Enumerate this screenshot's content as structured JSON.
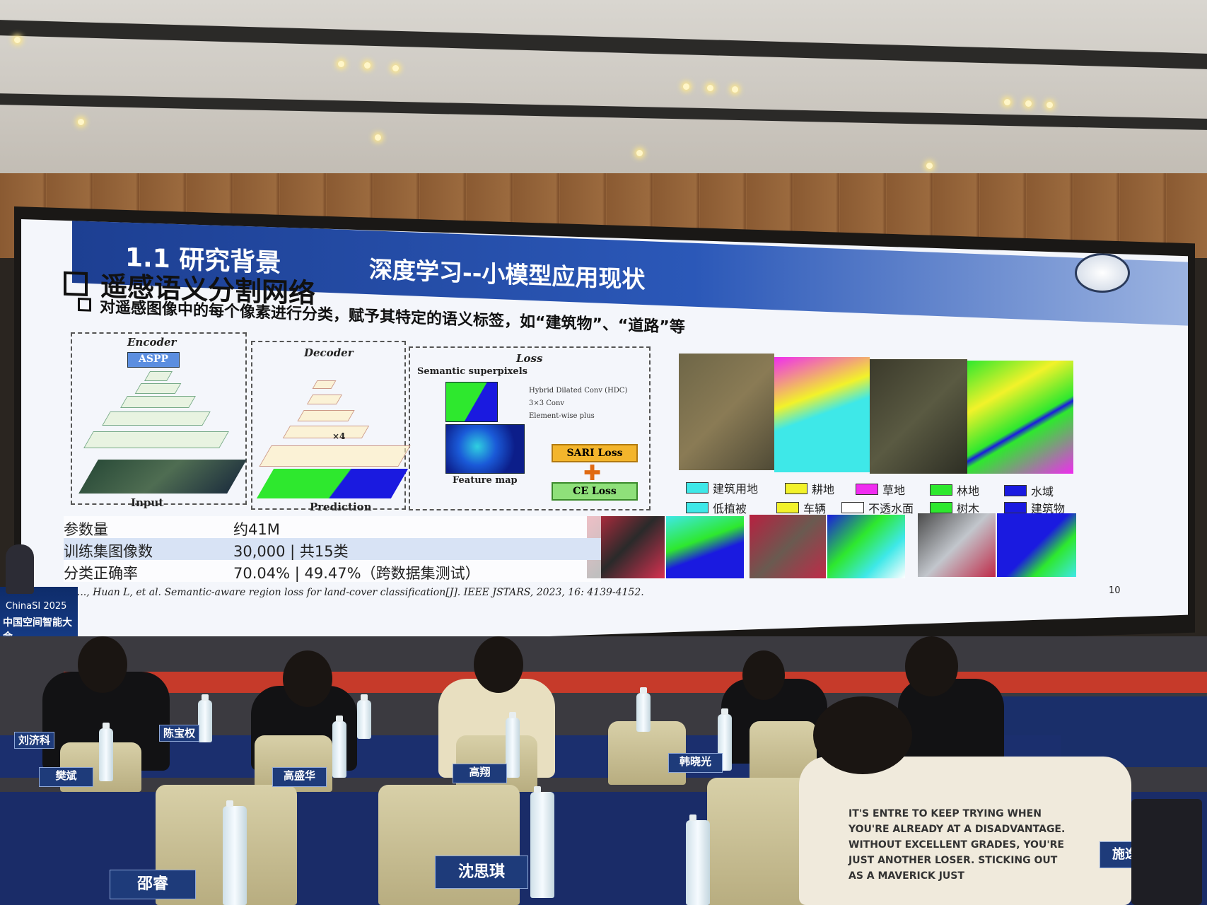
{
  "slide": {
    "title_section": "1.1 研究背景",
    "title_topic": "深度学习--小模型应用现状",
    "heading": "遥感语义分割网络",
    "subheading": "对遥感图像中的每个像素进行分类，赋予其特定的语义标签，如“建筑物”、“道路”等",
    "page_number": "10",
    "diagram": {
      "encoder_label": "Encoder",
      "decoder_label": "Decoder",
      "loss_label": "Loss",
      "aspp_label": "ASPP",
      "input_label": "Input",
      "prediction_label": "Prediction",
      "superpixels_label": "Semantic superpixels",
      "feature_map_label": "Feature map",
      "x4_label": "×4",
      "sari_loss_label": "SARI Loss",
      "ce_loss_label": "CE Loss",
      "legend_hdc": "Hybrid Dilated Conv (HDC)",
      "legend_conv": "3×3 Conv",
      "legend_plus": "Element-wise plus"
    },
    "legend_row1": [
      {
        "label": "建筑用地",
        "color": "#3ee8e8"
      },
      {
        "label": "耕地",
        "color": "#f2f22a"
      },
      {
        "label": "草地",
        "color": "#f02cf0"
      },
      {
        "label": "林地",
        "color": "#2ee82e"
      },
      {
        "label": "水域",
        "color": "#1a1ae0"
      }
    ],
    "legend_row2": [
      {
        "label": "低植被",
        "color": "#3ee8e8"
      },
      {
        "label": "车辆",
        "color": "#f2f22a"
      },
      {
        "label": "不透水面",
        "color": "#ffffff"
      },
      {
        "label": "树木",
        "color": "#2ee82e"
      },
      {
        "label": "建筑物",
        "color": "#1a1ae0"
      }
    ],
    "table": [
      {
        "key": "参数量",
        "value": "约41M"
      },
      {
        "key": "训练集图像数",
        "value": "30,000 | 共15类"
      },
      {
        "key": "分类正确率",
        "value": "70.04% | 49.47%（跨数据集测试）"
      }
    ],
    "citation": "X, ..., Huan L, et al. Semantic-aware region loss for land-cover classification[J]. IEEE JSTARS, 2023, 16: 4139-4152."
  },
  "banner": {
    "event_en": "ChinaSI 2025",
    "event_cn": "中国空间智能大会"
  },
  "nameplates": [
    "刘济科",
    "陈宝权",
    "樊斌",
    "高盛华",
    "高翔",
    "韩晓光",
    "邵睿",
    "沈思琪",
    "施逸"
  ],
  "shirt_text": "IT'S ENTRE TO KEEP TRYING WHEN YOU'RE ALREADY AT A DISADVANTAGE. WITHOUT EXCELLENT GRADES, YOU'RE JUST ANOTHER LOSER. STICKING OUT AS A MAVERICK JUST"
}
